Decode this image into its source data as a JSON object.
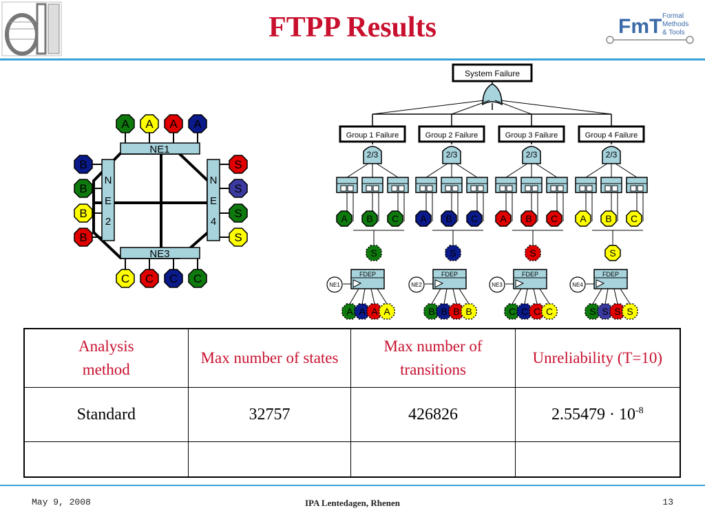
{
  "slide": {
    "title": "FTPP Results",
    "footer": {
      "date": "May 9, 2008",
      "event": "IPA Lentedagen, Rhenen",
      "page": "13"
    }
  },
  "logo_fmt": {
    "lines": [
      "Formal",
      "Methods",
      "& Tools"
    ],
    "mark": "FmT"
  },
  "network": {
    "ne_top": "NE1",
    "ne_bottom": "NE3",
    "ne_left": [
      "N",
      "E",
      "2"
    ],
    "ne_right": [
      "N",
      "E",
      "4"
    ],
    "top_nodes": [
      "A",
      "A",
      "A",
      "A"
    ],
    "left_nodes": [
      "B",
      "B",
      "B",
      "B"
    ],
    "right_nodes": [
      "S",
      "S",
      "S",
      "S"
    ],
    "bottom_nodes": [
      "C",
      "C",
      "C",
      "C"
    ]
  },
  "fault_tree": {
    "top_event": "System Failure",
    "groups": [
      {
        "label": "Group 1 Failure",
        "vote": "2/3",
        "leaves": [
          "A",
          "B",
          "C"
        ],
        "spare": "S"
      },
      {
        "label": "Group 2 Failure",
        "vote": "2/3",
        "leaves": [
          "A",
          "B",
          "C"
        ],
        "spare": "S"
      },
      {
        "label": "Group 3 Failure",
        "vote": "2/3",
        "leaves": [
          "A",
          "B",
          "C"
        ],
        "spare": "S"
      },
      {
        "label": "Group 4 Failure",
        "vote": "2/3",
        "leaves": [
          "A",
          "B",
          "C"
        ],
        "spare": "S"
      }
    ],
    "fdeps": [
      {
        "label": "FDEP",
        "trigger": "NE1",
        "deps": [
          "A",
          "A",
          "A",
          "A"
        ]
      },
      {
        "label": "FDEP",
        "trigger": "NE2",
        "deps": [
          "B",
          "B",
          "B",
          "B"
        ]
      },
      {
        "label": "FDEP",
        "trigger": "NE3",
        "deps": [
          "C",
          "C",
          "C",
          "C"
        ]
      },
      {
        "label": "FDEP",
        "trigger": "NE4",
        "deps": [
          "S",
          "S",
          "S",
          "S"
        ]
      }
    ]
  },
  "colors": {
    "title": "#c8102e",
    "rule": "#3aa0d8",
    "green": "#0e7a0e",
    "yellow": "#ffff00",
    "red": "#e00000",
    "navy": "#0a1a8a",
    "purple": "#3a3aa0",
    "ne_fill": "#a7d3dc"
  },
  "table": {
    "headers": [
      "Analysis\nmethod",
      "Max number of states",
      "Max number of transitions",
      "Unreliability (T=10)"
    ],
    "header_method_1": "Analysis",
    "header_method_2": "method",
    "rows": [
      {
        "method": "Standard",
        "states": "32757",
        "transitions": "426826",
        "unrel_base": "2.55479 · 10",
        "unrel_exp": "-8"
      },
      {
        "method": "",
        "states": "",
        "transitions": "",
        "unrel_base": "",
        "unrel_exp": ""
      }
    ]
  }
}
